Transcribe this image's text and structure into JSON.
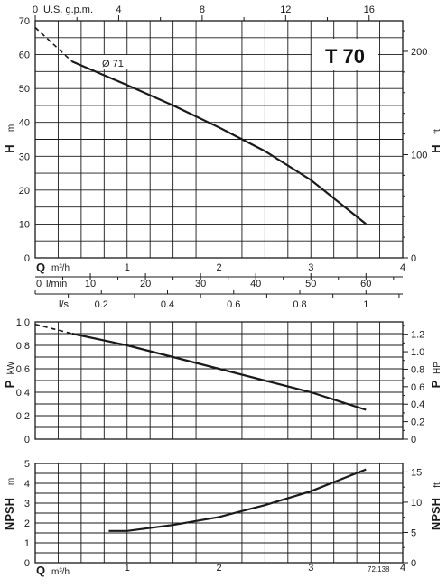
{
  "chart_data": [
    {
      "type": "line",
      "title": "T 70",
      "xlabel": "Q",
      "xunit": "m³/h",
      "ylabel": "H",
      "yunit": "m",
      "y2label": "H",
      "y2unit": "ft",
      "xlim": [
        0,
        4
      ],
      "ylim": [
        0,
        70
      ],
      "x_ticks": [
        "0",
        "1",
        "2",
        "3",
        "4"
      ],
      "y_ticks": [
        "0",
        "10",
        "20",
        "30",
        "40",
        "50",
        "60",
        "70"
      ],
      "y2_ticks": [
        "0",
        "100",
        "200"
      ],
      "top_axis": {
        "label": "U.S. g.p.m.",
        "ticks": [
          "0",
          "4",
          "8",
          "12",
          "16"
        ]
      },
      "annotation": "Ø 71",
      "grid": true,
      "series": [
        {
          "style": "solid",
          "x": [
            0.4,
            1.0,
            1.5,
            2.0,
            2.5,
            3.0,
            3.6
          ],
          "y": [
            58,
            51,
            45,
            38.5,
            31.5,
            23,
            10
          ]
        },
        {
          "style": "dashed",
          "x": [
            0,
            0.4
          ],
          "y": [
            68,
            58
          ]
        }
      ]
    },
    {
      "type": "axis",
      "scales": [
        {
          "label": "Q",
          "unit": "m³/h",
          "ticks": [
            "0",
            "1",
            "2",
            "3",
            "4"
          ]
        },
        {
          "label": "l/min",
          "ticks": [
            "0",
            "10",
            "20",
            "30",
            "40",
            "50",
            "60"
          ]
        },
        {
          "label": "l/s",
          "ticks": [
            "0",
            "0.2",
            "0.4",
            "0.6",
            "0.8",
            "1"
          ]
        }
      ]
    },
    {
      "type": "line",
      "xlabel": "Q",
      "xunit": "m³/h",
      "ylabel": "P",
      "yunit": "kW",
      "y2label": "P",
      "y2unit": "HP",
      "xlim": [
        0,
        4
      ],
      "ylim": [
        0,
        1.0
      ],
      "y_ticks": [
        "0",
        "0.2",
        "0.4",
        "0.6",
        "0.8",
        "1.0"
      ],
      "y2_ticks": [
        "0",
        "0.2",
        "0.4",
        "0.6",
        "0.8",
        "1.0",
        "1.2"
      ],
      "grid": true,
      "series": [
        {
          "style": "solid",
          "x": [
            0.4,
            1.0,
            2.0,
            3.0,
            3.6
          ],
          "y": [
            0.9,
            0.8,
            0.6,
            0.4,
            0.25
          ]
        },
        {
          "style": "dashed",
          "x": [
            0,
            0.4
          ],
          "y": [
            0.98,
            0.9
          ]
        }
      ]
    },
    {
      "type": "line",
      "xlabel": "Q",
      "xunit": "m³/h",
      "ylabel": "NPSH",
      "yunit": "m",
      "y2label": "NPSH",
      "y2unit": "ft",
      "xlim": [
        0,
        4
      ],
      "ylim": [
        0,
        5
      ],
      "x_ticks": [
        "0",
        "1",
        "2",
        "3",
        "4"
      ],
      "y_ticks": [
        "0",
        "1",
        "2",
        "3",
        "4",
        "5"
      ],
      "y2_ticks": [
        "0",
        "5",
        "10",
        "15"
      ],
      "code": "72.138",
      "grid": true,
      "series": [
        {
          "style": "solid",
          "x": [
            0.8,
            1.0,
            1.5,
            2.0,
            2.5,
            3.0,
            3.6
          ],
          "y": [
            1.6,
            1.6,
            1.9,
            2.3,
            2.9,
            3.6,
            4.7
          ]
        }
      ]
    }
  ]
}
